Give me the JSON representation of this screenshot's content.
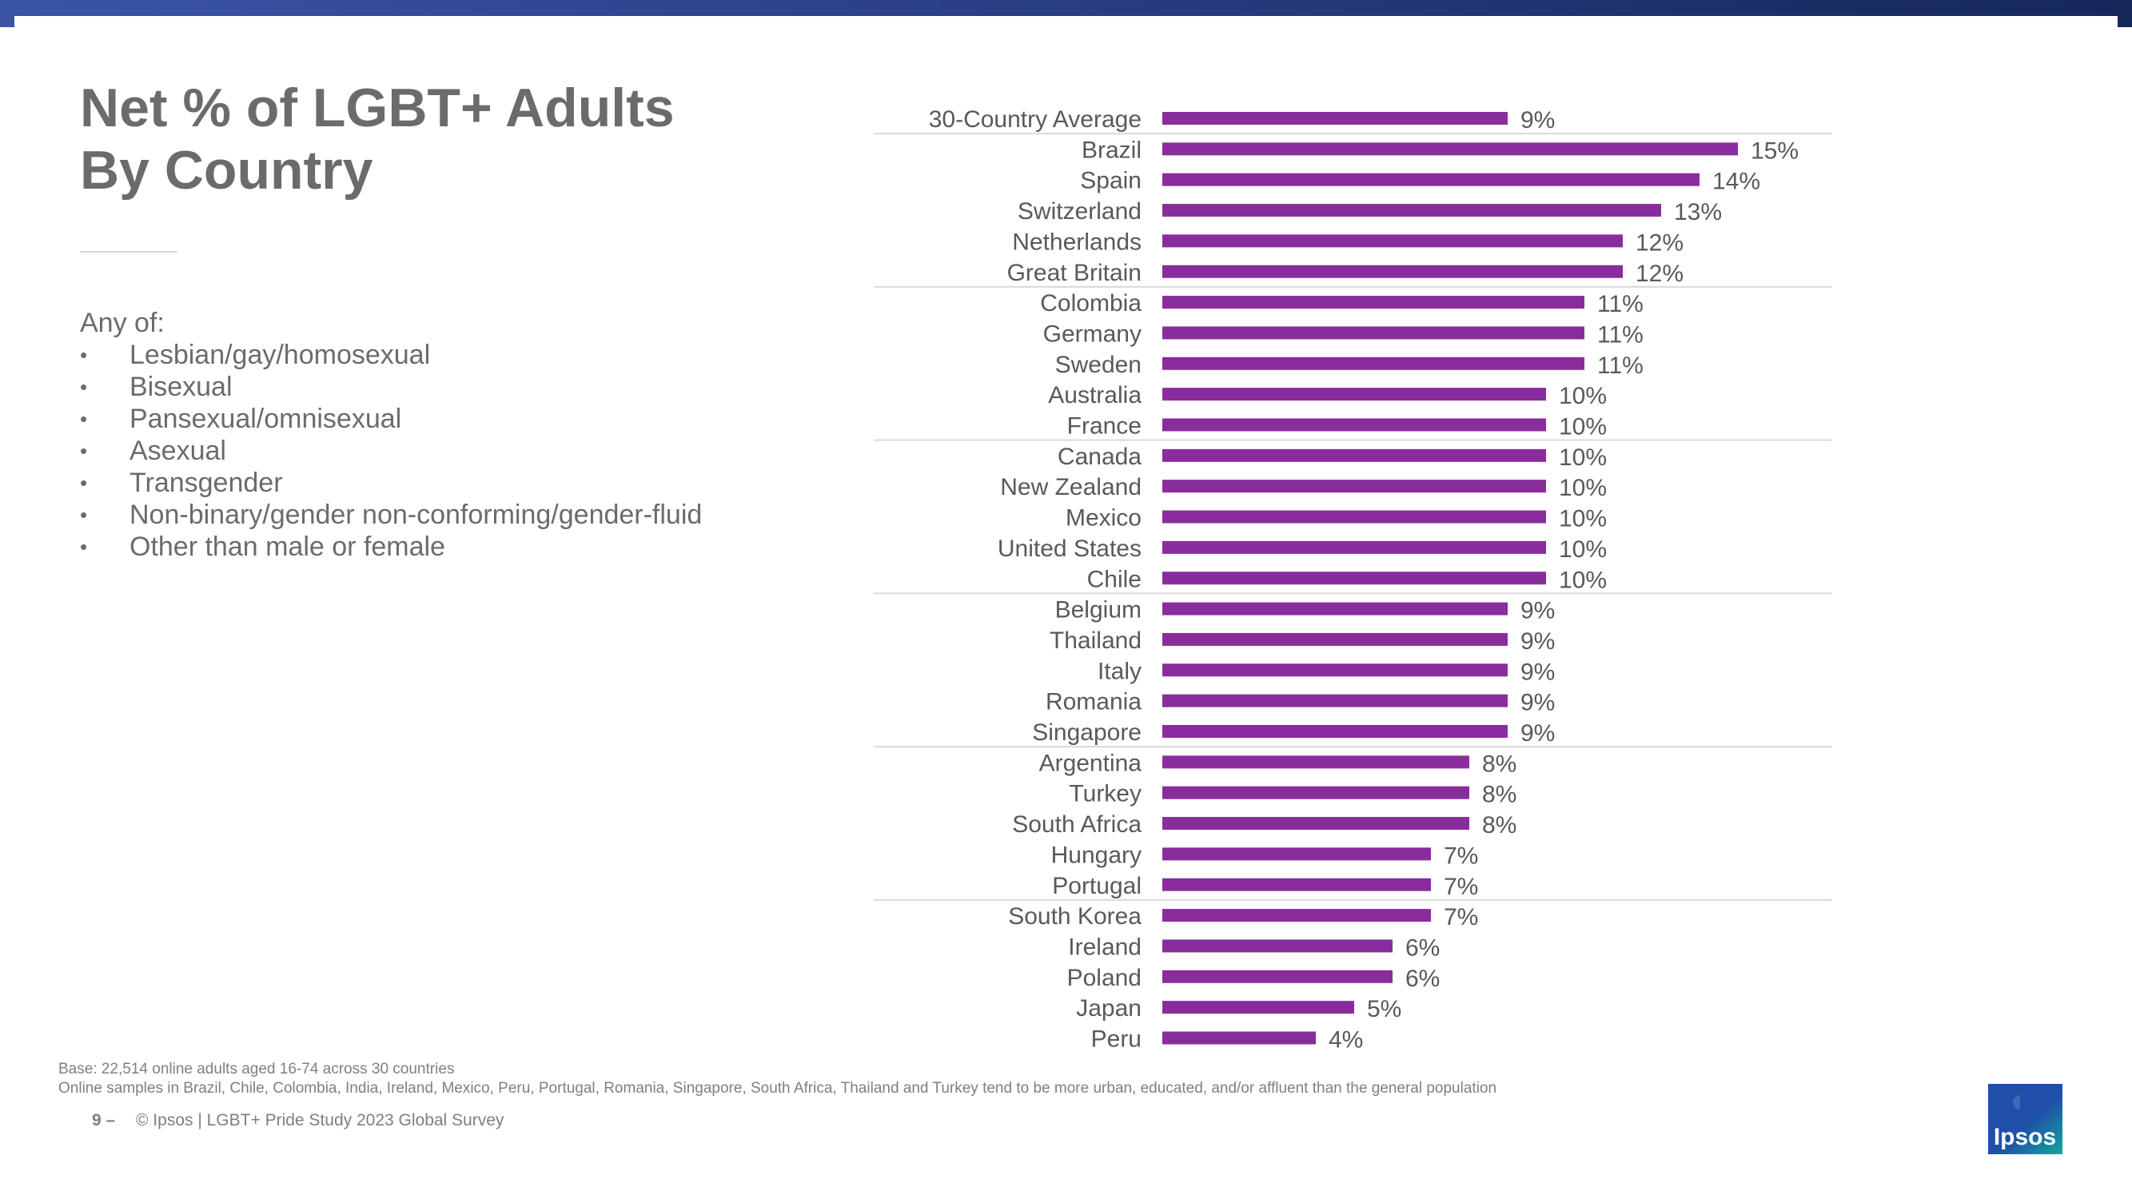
{
  "slide": {
    "title_line1": "Net % of LGBT+ Adults",
    "title_line2": "By Country",
    "definition_heading": "Any of:",
    "definition_items": [
      "Lesbian/gay/homosexual",
      "Bisexual",
      "Pansexual/omnisexual",
      "Asexual",
      "Transgender",
      "Non-binary/gender non-conforming/gender-fluid",
      "Other than male or female"
    ],
    "base_note": "Base: 22,514 online adults aged 16-74 across 30 countries",
    "sample_note": "Online samples in Brazil, Chile, Colombia, India, Ireland, Mexico, Peru, Portugal, Romania, Singapore, South Africa, Thailand and Turkey tend to be more urban, educated, and/or affluent than the general population",
    "page_number": "9 –",
    "copyright": "© Ipsos | LGBT+ Pride Study 2023 Global Survey",
    "logo_text": "Ipsos"
  },
  "colors": {
    "bar": "#8a2d9c",
    "title": "#6b6b6b",
    "text": "#595959",
    "separator": "#d9d9d9",
    "logo_blue": "#1f4fa8",
    "logo_teal": "#14a89b"
  },
  "chart_data": {
    "type": "bar",
    "orientation": "horizontal",
    "categories": [
      "30-Country Average",
      "Brazil",
      "Spain",
      "Switzerland",
      "Netherlands",
      "Great Britain",
      "Colombia",
      "Germany",
      "Sweden",
      "Australia",
      "France",
      "Canada",
      "New Zealand",
      "Mexico",
      "United States",
      "Chile",
      "Belgium",
      "Thailand",
      "Italy",
      "Romania",
      "Singapore",
      "Argentina",
      "Turkey",
      "South Africa",
      "Hungary",
      "Portugal",
      "South Korea",
      "Ireland",
      "Poland",
      "Japan",
      "Peru"
    ],
    "values": [
      9,
      15,
      14,
      13,
      12,
      12,
      11,
      11,
      11,
      10,
      10,
      10,
      10,
      10,
      10,
      10,
      9,
      9,
      9,
      9,
      9,
      8,
      8,
      8,
      7,
      7,
      7,
      6,
      6,
      5,
      4
    ],
    "value_labels": [
      "9%",
      "15%",
      "14%",
      "13%",
      "12%",
      "12%",
      "11%",
      "11%",
      "11%",
      "10%",
      "10%",
      "10%",
      "10%",
      "10%",
      "10%",
      "10%",
      "9%",
      "9%",
      "9%",
      "9%",
      "9%",
      "8%",
      "8%",
      "8%",
      "7%",
      "7%",
      "7%",
      "6%",
      "6%",
      "5%",
      "4%"
    ],
    "unit": "%",
    "xlim": [
      0,
      15
    ],
    "grid": false,
    "group_separators_after_rows": [
      0,
      5,
      10,
      15,
      20,
      25
    ]
  }
}
